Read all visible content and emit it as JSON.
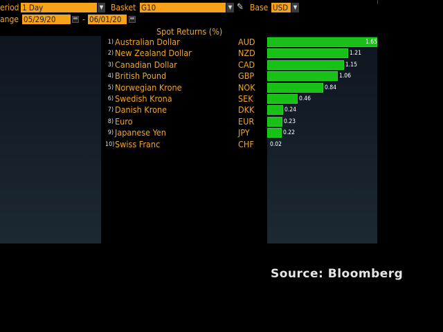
{
  "toolbar": {
    "period_label": "eriod",
    "period_value": "1 Day",
    "basket_label": "Basket",
    "basket_value": "G10",
    "base_label": "Base",
    "base_value": "USD",
    "range_label": "ange",
    "start_date": "05/29/20",
    "end_date": "06/01/20",
    "range_separator": "-"
  },
  "table_title": "Spot Returns (%)",
  "source_text": "Source: Bloomberg",
  "colors": {
    "accent": "#f5a623",
    "bar": "#18c018",
    "field": "#f7a21b"
  },
  "chart_data": {
    "type": "bar",
    "title": "Spot Returns (%)",
    "categories": [
      "Australian Dollar",
      "New Zealand Dollar",
      "Canadian Dollar",
      "British Pound",
      "Norwegian Krone",
      "Swedish Krona",
      "Danish Krone",
      "Euro",
      "Japanese Yen",
      "Swiss Franc"
    ],
    "codes": [
      "AUD",
      "NZD",
      "CAD",
      "GBP",
      "NOK",
      "SEK",
      "DKK",
      "EUR",
      "JPY",
      "CHF"
    ],
    "ranks": [
      "1)",
      "2)",
      "3)",
      "4)",
      "5)",
      "6)",
      "7)",
      "8)",
      "9)",
      "10)"
    ],
    "values": [
      1.65,
      1.21,
      1.15,
      1.06,
      0.84,
      0.46,
      0.24,
      0.23,
      0.22,
      0.02
    ],
    "value_labels": [
      "1.65",
      "1.21",
      "1.15",
      "1.06",
      "0.84",
      "0.46",
      "0.24",
      "0.23",
      "0.22",
      "0.02"
    ]
  }
}
